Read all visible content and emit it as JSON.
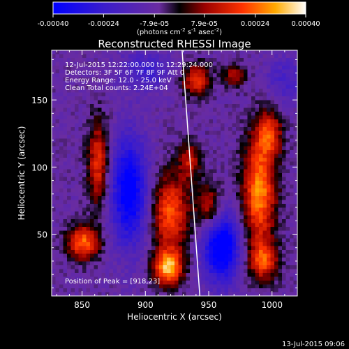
{
  "chart_data": {
    "type": "heatmap",
    "title": "Reconstructed RHESSI Image",
    "xlabel": "Heliocentric X (arcsec)",
    "ylabel": "Heliocentric Y (arcsec)",
    "xlim": [
      826,
      1020
    ],
    "ylim": [
      4,
      187
    ],
    "x_ticks": [
      850,
      900,
      950,
      1000
    ],
    "y_ticks": [
      50,
      100,
      150
    ],
    "colorbar": {
      "unit_prefix": "(photons cm",
      "unit_exp1": "-2",
      "unit_mid": " s",
      "unit_exp2": "-1",
      "unit_mid2": " asec",
      "unit_exp3": "-2",
      "unit_suffix": ")",
      "range": [
        -0.0004,
        0.0004
      ],
      "tick_values": [
        -0.0004,
        -0.00024,
        -7.9e-05,
        7.9e-05,
        0.00024,
        0.0004
      ],
      "tick_labels": [
        "-0.00040",
        "-0.00024",
        "-7.9e-05",
        "7.9e-05",
        "0.00024",
        "0.00040"
      ]
    },
    "annotations": [
      "12-Jul-2015 12:22:00.000 to 12:29:24.000",
      "Detectors: 3F 5F 6F 7F 8F 9F Att 0",
      "Energy Range: 12.0 - 25.0 keV",
      "Clean     Total counts: 2.24E+04"
    ],
    "peak_label": "Position of Peak = [918,23]",
    "limb_line": [
      [
        929,
        187
      ],
      [
        943,
        4
      ]
    ],
    "sources": [
      {
        "x": 851,
        "y": 44,
        "sx": 9,
        "sy": 9,
        "v": 0.00032
      },
      {
        "x": 863,
        "y": 103,
        "sx": 6,
        "sy": 22,
        "v": 0.00026
      },
      {
        "x": 920,
        "y": 66,
        "sx": 10,
        "sy": 20,
        "v": 0.0003
      },
      {
        "x": 918,
        "y": 25,
        "sx": 8,
        "sy": 9,
        "v": 0.0004
      },
      {
        "x": 935,
        "y": 105,
        "sx": 6,
        "sy": 10,
        "v": 0.0002
      },
      {
        "x": 940,
        "y": 165,
        "sx": 8,
        "sy": 8,
        "v": 0.00026
      },
      {
        "x": 970,
        "y": 168,
        "sx": 6,
        "sy": 6,
        "v": 0.00018
      },
      {
        "x": 950,
        "y": 70,
        "sx": 7,
        "sy": 12,
        "v": 0.00022
      },
      {
        "x": 990,
        "y": 82,
        "sx": 9,
        "sy": 28,
        "v": 0.00036
      },
      {
        "x": 998,
        "y": 125,
        "sx": 7,
        "sy": 12,
        "v": 0.00024
      },
      {
        "x": 993,
        "y": 30,
        "sx": 8,
        "sy": 10,
        "v": 0.00026
      },
      {
        "x": 887,
        "y": 82,
        "sx": 10,
        "sy": 28,
        "v": -0.00036
      },
      {
        "x": 960,
        "y": 40,
        "sx": 10,
        "sy": 18,
        "v": -0.0004
      },
      {
        "x": 900,
        "y": 172,
        "sx": 15,
        "sy": 10,
        "v": -0.00015
      },
      {
        "x": 1010,
        "y": 165,
        "sx": 10,
        "sy": 12,
        "v": -0.00012
      }
    ]
  },
  "footer_timestamp": "13-Jul-2015 09:06"
}
